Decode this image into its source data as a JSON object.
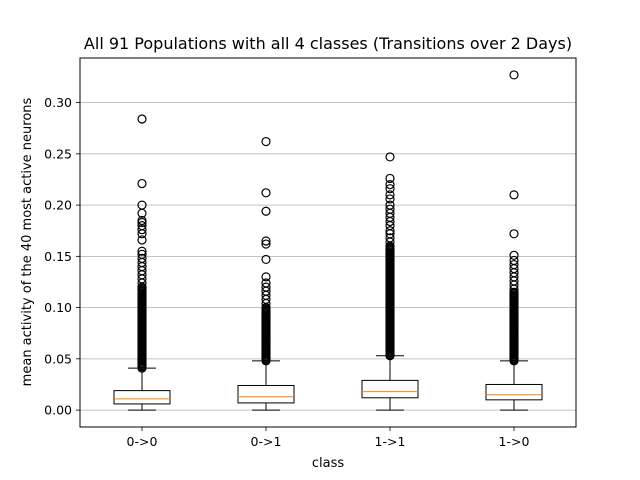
{
  "chart_data": {
    "type": "box",
    "title": "All 91 Populations with all 4 classes (Transitions over 2 Days)",
    "xlabel": "class",
    "ylabel": "mean activity of the 40 most active neurons",
    "ylim": [
      -0.0165,
      0.3435
    ],
    "yticks": [
      0.0,
      0.05,
      0.1,
      0.15,
      0.2,
      0.25,
      0.3
    ],
    "ytick_labels": [
      "0.00",
      "0.05",
      "0.10",
      "0.15",
      "0.20",
      "0.25",
      "0.30"
    ],
    "grid": "y",
    "categories": [
      "0->0",
      "0->1",
      "1->1",
      "1->0"
    ],
    "boxes": [
      {
        "label": "0->0",
        "whisker_low": 0.0,
        "q1": 0.006,
        "median": 0.011,
        "q3": 0.019,
        "whisker_high": 0.041,
        "fliers_dense_range": [
          0.041,
          0.12
        ],
        "fliers": [
          0.124,
          0.128,
          0.132,
          0.136,
          0.14,
          0.144,
          0.148,
          0.152,
          0.155,
          0.166,
          0.172,
          0.176,
          0.18,
          0.183,
          0.185,
          0.192,
          0.2,
          0.221,
          0.284
        ]
      },
      {
        "label": "0->1",
        "whisker_low": 0.0,
        "q1": 0.007,
        "median": 0.013,
        "q3": 0.024,
        "whisker_high": 0.048,
        "fliers_dense_range": [
          0.048,
          0.1
        ],
        "fliers": [
          0.104,
          0.108,
          0.112,
          0.116,
          0.12,
          0.124,
          0.13,
          0.147,
          0.162,
          0.165,
          0.194,
          0.212,
          0.262
        ]
      },
      {
        "label": "1->1",
        "whisker_low": 0.0,
        "q1": 0.012,
        "median": 0.018,
        "q3": 0.029,
        "whisker_high": 0.053,
        "fliers_dense_range": [
          0.053,
          0.16
        ],
        "fliers": [
          0.164,
          0.168,
          0.172,
          0.175,
          0.18,
          0.184,
          0.188,
          0.192,
          0.196,
          0.2,
          0.206,
          0.21,
          0.216,
          0.22,
          0.226,
          0.247
        ]
      },
      {
        "label": "1->0",
        "whisker_low": 0.0,
        "q1": 0.01,
        "median": 0.015,
        "q3": 0.025,
        "whisker_high": 0.048,
        "fliers_dense_range": [
          0.048,
          0.115
        ],
        "fliers": [
          0.118,
          0.122,
          0.126,
          0.13,
          0.134,
          0.138,
          0.142,
          0.146,
          0.151,
          0.172,
          0.21,
          0.327
        ]
      }
    ]
  },
  "colors": {
    "box": "#000000",
    "median": "#ff7f0e",
    "grid": "#b0b0b0",
    "background": "#ffffff"
  }
}
